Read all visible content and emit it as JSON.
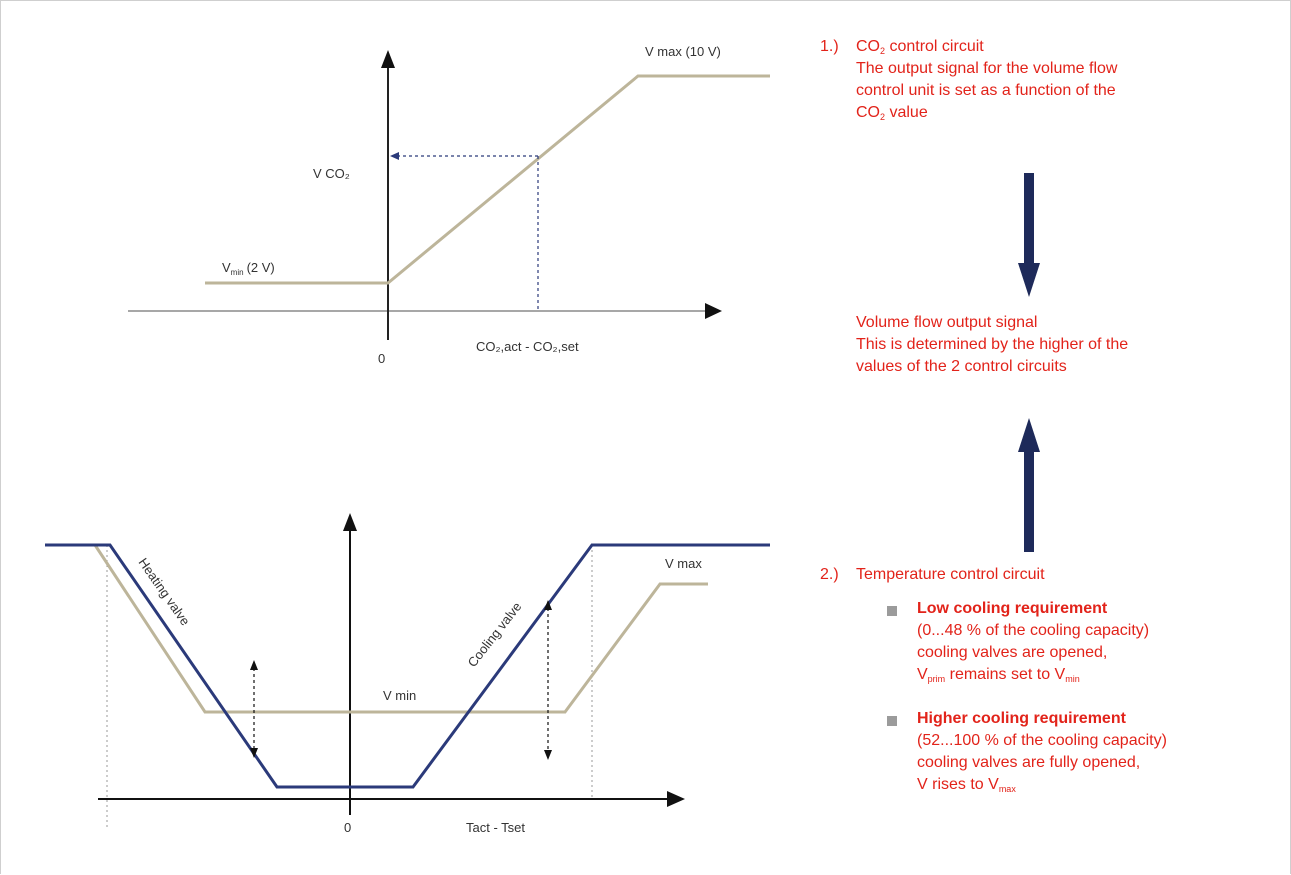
{
  "chart_top": {
    "vmax_label": "V max (10 V)",
    "vco2_label": "V CO₂",
    "vmin_label": "V",
    "vmin_sub": "min",
    "vmin_suffix": "(2 V)",
    "origin_label": "0",
    "xaxis_label": "CO₂,act - CO₂,set"
  },
  "chart_bottom": {
    "heating_label": "Heating valve",
    "cooling_label": "Cooling valve",
    "vmax_label": "V max",
    "vmin_label": "V min",
    "origin_label": "0",
    "xaxis_label": "Tact - Tset"
  },
  "colors": {
    "text_accent": "#e2231a",
    "arrow": "#1e2a5a",
    "valve_line": "#2b3a7a",
    "volume_line": "#bdb59a"
  },
  "section1": {
    "number": "1.)",
    "title_pre": "CO",
    "title_sub": "2",
    "title_post": " control circuit",
    "desc_line1": "The output signal for the volume flow",
    "desc_line2": "control unit is set as a function of the",
    "desc_line3_pre": "CO",
    "desc_line3_sub": "2",
    "desc_line3_post": " value"
  },
  "output": {
    "title": "Volume flow output signal",
    "desc_line1": "This is determined by the higher of the",
    "desc_line2": "values of the 2 control circuits"
  },
  "section2": {
    "number": "2.)",
    "title": "Temperature control circuit",
    "bullets": [
      {
        "title": "Low cooling requirement",
        "line1": "(0...48 % of the cooling capacity)",
        "line2": "cooling valves are opened,",
        "line3_a": "V",
        "line3_a_sub": "prim",
        "line3_b": " remains set to V",
        "line3_b_sub": "min"
      },
      {
        "title": "Higher cooling requirement",
        "line1": "(52...100 % of the cooling capacity)",
        "line2": "cooling valves are fully opened,",
        "line3_a": "V rises to V",
        "line3_a_sub": "max"
      }
    ]
  }
}
